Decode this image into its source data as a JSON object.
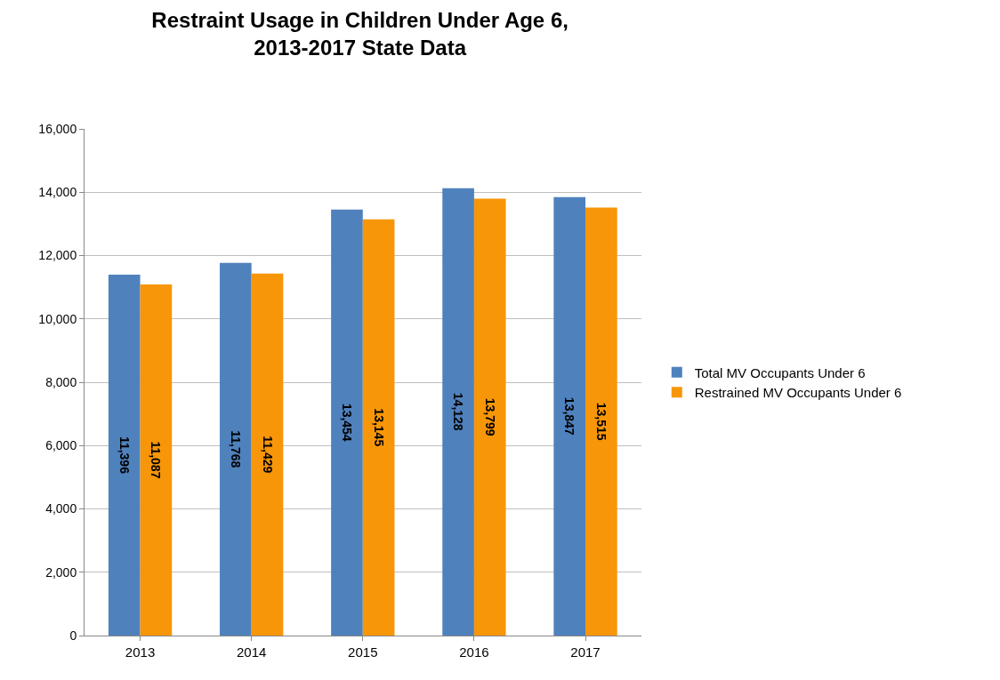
{
  "chart_data": {
    "type": "bar",
    "title": "Restraint Usage in Children Under Age 6,\n2013-2017 State Data",
    "categories": [
      "2013",
      "2014",
      "2015",
      "2016",
      "2017"
    ],
    "series": [
      {
        "name": "Total MV Occupants Under 6",
        "color": "#4f81bd",
        "values": [
          11396,
          11768,
          13454,
          14128,
          13847
        ],
        "value_labels": [
          "11,396",
          "11,768",
          "13,454",
          "14,128",
          "13,847"
        ]
      },
      {
        "name": "Restrained MV Occupants Under 6",
        "color": "#f79608",
        "values": [
          11087,
          11429,
          13145,
          13799,
          13515
        ],
        "value_labels": [
          "11,087",
          "11,429",
          "13,145",
          "13,799",
          "13,515"
        ]
      }
    ],
    "ylim": [
      0,
      16000
    ],
    "yticks": [
      {
        "value": 0,
        "label": "0"
      },
      {
        "value": 2000,
        "label": "2,000"
      },
      {
        "value": 4000,
        "label": "4,000"
      },
      {
        "value": 6000,
        "label": "6,000"
      },
      {
        "value": 8000,
        "label": "8,000"
      },
      {
        "value": 10000,
        "label": "10,000"
      },
      {
        "value": 12000,
        "label": "12,000"
      },
      {
        "value": 14000,
        "label": "14,000"
      },
      {
        "value": 16000,
        "label": "16,000"
      }
    ],
    "grid": "y",
    "legend": "right"
  }
}
